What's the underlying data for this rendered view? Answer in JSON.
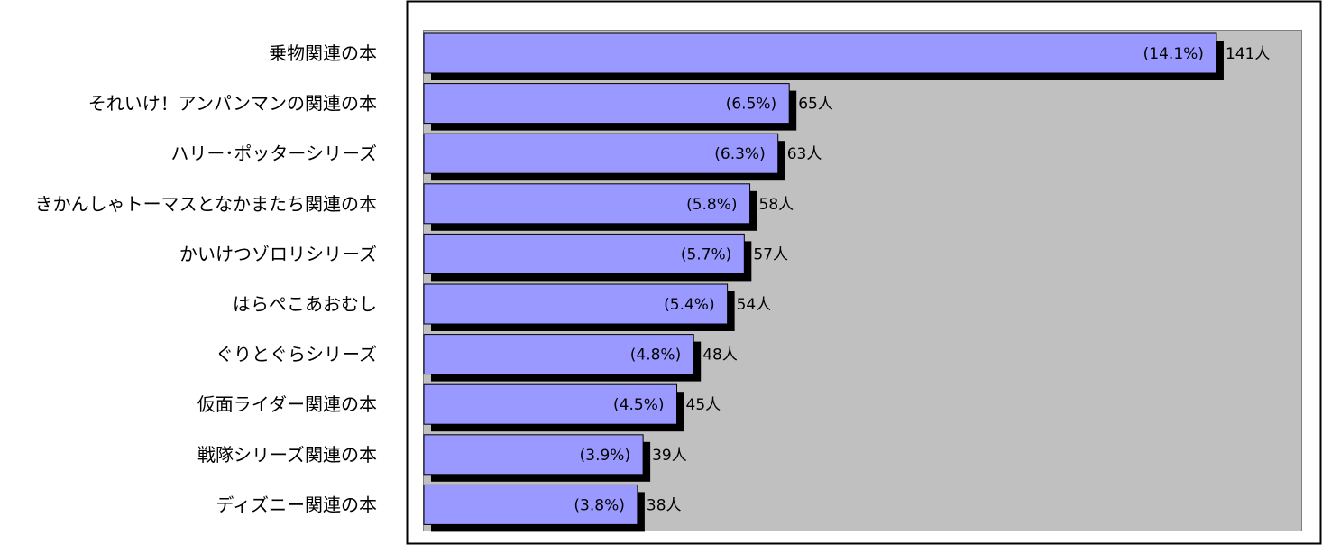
{
  "chart_data": {
    "type": "bar",
    "orientation": "horizontal",
    "categories": [
      "乗物関連の本",
      "それいけ！アンパンマンの関連の本",
      "ハリー･ポッターシリーズ",
      "きかんしゃトーマスとなかまたち関連の本",
      "かいけつゾロリシリーズ",
      "はらぺこあおむし",
      "ぐりとぐらシリーズ",
      "仮面ライダー関連の本",
      "戦隊シリーズ関連の本",
      "ディズニー関連の本"
    ],
    "values": [
      141,
      65,
      63,
      58,
      57,
      54,
      48,
      45,
      39,
      38
    ],
    "percent_labels": [
      "(14.1%)",
      "(6.5%)",
      "(6.3%)",
      "(5.8%)",
      "(5.7%)",
      "(5.4%)",
      "(4.8%)",
      "(4.5%)",
      "(3.9%)",
      "(3.8%)"
    ],
    "value_labels": [
      "141人",
      "65人",
      "63人",
      "58人",
      "57人",
      "54人",
      "48人",
      "45人",
      "39人",
      "38人"
    ],
    "xlim": [
      0,
      154
    ],
    "grid": false,
    "legend": "none",
    "colors": {
      "bar_fill": "#9999ff",
      "bar_shadow": "#000000",
      "plot_background": "#c0c0c0",
      "plot_border": "#808080",
      "frame_border": "#000000"
    }
  }
}
